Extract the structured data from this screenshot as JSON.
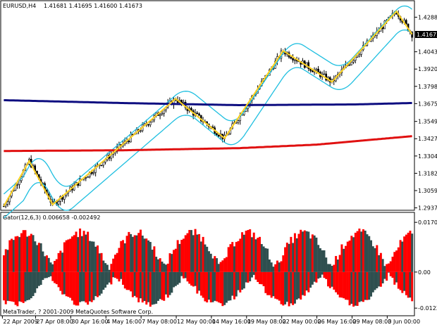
{
  "header": {
    "symbol": "EURUSD,H4",
    "ohlc": "1.41681 1.41695 1.41600 1.41673"
  },
  "current_price_label": "1.41673",
  "indicator": {
    "title": "Gator(12,6,3) 0.006658 -0.002492",
    "axis_labels": [
      "0.017047",
      "0.00",
      "-0.01237"
    ]
  },
  "copyright": "MetaTrader, ? 2001-2009 MetaQuotes Software Corp.",
  "colors": {
    "background": "#ffffff",
    "frame": "#000000",
    "candle": "#000000",
    "zigzag": "#ffd21f",
    "bollinger": "#1fbfe0",
    "ma_slow_blue": "#0d0d80",
    "ma_red": "#e01010",
    "gator_up": "#ff0000",
    "gator_down": "#2f4f4f"
  },
  "chart_data": [
    {
      "type": "candlestick",
      "title": "EURUSD,H4",
      "y_ticks": [
        "1.42880",
        "1.41673",
        "1.40430",
        "1.39205",
        "1.37980",
        "1.36755",
        "1.35495",
        "1.34270",
        "1.33045",
        "1.31820",
        "1.30595",
        "1.29370"
      ],
      "ylim": [
        1.2925,
        1.434
      ],
      "x_ticks": [
        "22 Apr 2009",
        "27 Apr 08:00",
        "30 Apr 16:00",
        "4 May 16:00",
        "7 May 08:00",
        "12 May 00:00",
        "14 May 16:00",
        "19 May 08:00",
        "22 May 00:00",
        "26 May 16:00",
        "29 May 08:00",
        "3 Jun 00:00"
      ],
      "x_tick_bar_index": [
        0,
        17,
        35,
        53,
        71,
        89,
        107,
        125,
        143,
        161,
        179,
        197
      ],
      "bar_count": 210,
      "zigzag": {
        "bars": [
          0,
          13,
          25,
          88,
          113,
          143,
          168,
          201,
          209
        ],
        "prices": [
          1.295,
          1.327,
          1.296,
          1.371,
          1.343,
          1.405,
          1.383,
          1.433,
          1.4167
        ]
      },
      "ma_blue": {
        "bars": [
          0,
          60,
          120,
          180,
          209
        ],
        "prices": [
          1.37,
          1.368,
          1.3665,
          1.367,
          1.368
        ]
      },
      "ma_red": {
        "bars": [
          0,
          60,
          120,
          160,
          209
        ],
        "prices": [
          1.334,
          1.3345,
          1.336,
          1.3385,
          1.3445
        ]
      }
    },
    {
      "type": "histogram",
      "title": "Gator(12,6,3)",
      "values": {
        "current_up": 0.006658,
        "current_down": -0.002492
      },
      "y_ticks": [
        "0.017047",
        "0.00",
        "-0.01237"
      ],
      "ylim": [
        -0.0145,
        0.0195
      ]
    }
  ]
}
